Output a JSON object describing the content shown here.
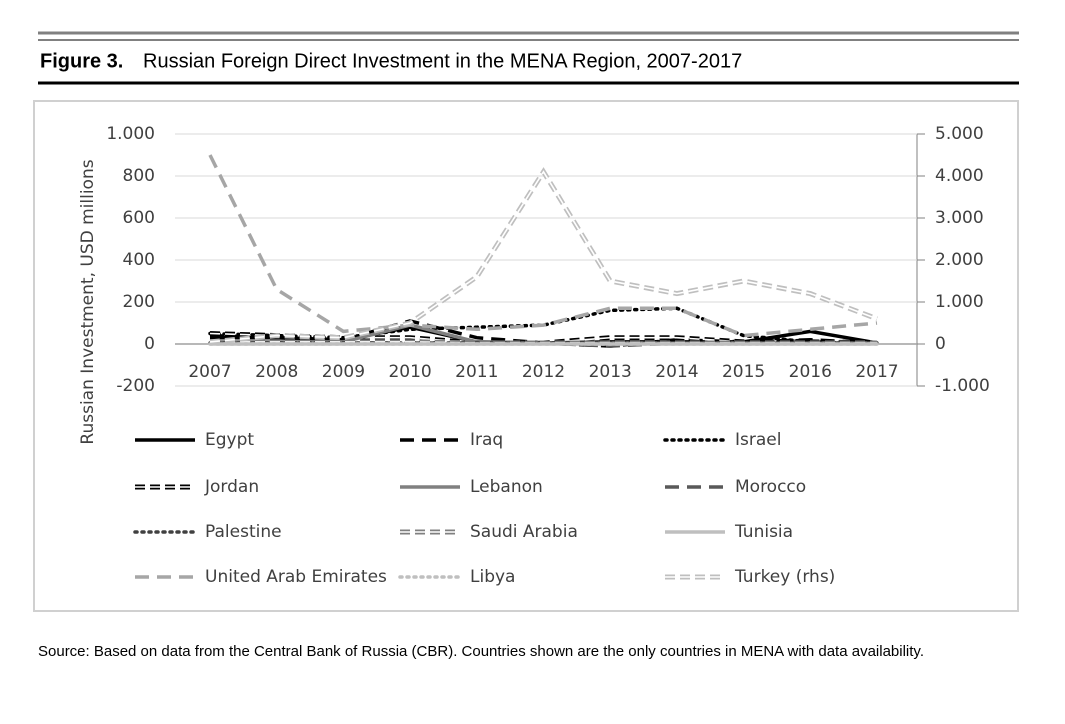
{
  "figure_label": "Figure 3.",
  "chart_data": {
    "type": "line",
    "title": "Russian Foreign Direct Investment in the MENA Region, 2007-2017",
    "y_label": "Russian Investment, USD millions",
    "categories": [
      "2007",
      "2008",
      "2009",
      "2010",
      "2011",
      "2012",
      "2013",
      "2014",
      "2015",
      "2016",
      "2017"
    ],
    "ylim": [
      -200,
      1000
    ],
    "yticks": [
      -200,
      0,
      200,
      400,
      600,
      800,
      {
        "value": 1000,
        "label": "1.000"
      }
    ],
    "y2lim": [
      -1000,
      5000
    ],
    "y2ticks": [
      {
        "value": -1000,
        "label": "-1.000"
      },
      0,
      {
        "value": 1000,
        "label": "1.000"
      },
      {
        "value": 2000,
        "label": "2.000"
      },
      {
        "value": 3000,
        "label": "3.000"
      },
      {
        "value": 4000,
        "label": "4.000"
      },
      {
        "value": 5000,
        "label": "5.000"
      }
    ],
    "grid": true,
    "series": [
      {
        "name": "Egypt",
        "color": "#000000",
        "style": "solid",
        "values": [
          30,
          30,
          20,
          80,
          10,
          5,
          10,
          10,
          10,
          60,
          5
        ]
      },
      {
        "name": "Iraq",
        "color": "#000000",
        "style": "dashed",
        "values": [
          40,
          30,
          20,
          110,
          30,
          5,
          -10,
          20,
          10,
          20,
          5
        ]
      },
      {
        "name": "Israel",
        "color": "#000000",
        "style": "dotted",
        "values": [
          50,
          40,
          30,
          70,
          80,
          90,
          160,
          170,
          40,
          10,
          5
        ]
      },
      {
        "name": "Jordan",
        "color": "#000000",
        "style": "double",
        "values": [
          50,
          40,
          30,
          30,
          5,
          5,
          30,
          30,
          10,
          10,
          5
        ]
      },
      {
        "name": "Lebanon",
        "color": "#808080",
        "style": "solid",
        "values": [
          10,
          10,
          10,
          90,
          10,
          5,
          5,
          5,
          5,
          5,
          5
        ]
      },
      {
        "name": "Morocco",
        "color": "#595959",
        "style": "dashed",
        "values": [
          5,
          5,
          5,
          5,
          5,
          5,
          -10,
          5,
          5,
          5,
          5
        ]
      },
      {
        "name": "Palestine",
        "color": "#404040",
        "style": "dotted",
        "values": [
          5,
          5,
          5,
          5,
          5,
          5,
          5,
          5,
          5,
          5,
          5
        ]
      },
      {
        "name": "Saudi Arabia",
        "color": "#808080",
        "style": "double",
        "values": [
          10,
          10,
          10,
          10,
          5,
          5,
          5,
          5,
          5,
          5,
          5
        ]
      },
      {
        "name": "Tunisia",
        "color": "#bfbfbf",
        "style": "solid",
        "values": [
          0,
          0,
          0,
          0,
          0,
          0,
          0,
          0,
          0,
          0,
          0
        ]
      },
      {
        "name": "United Arab Emirates",
        "color": "#a6a6a6",
        "style": "dashed",
        "values": [
          900,
          260,
          60,
          90,
          70,
          90,
          170,
          170,
          40,
          70,
          100
        ]
      },
      {
        "name": "Libya",
        "color": "#bfbfbf",
        "style": "dotted",
        "values": [
          0,
          0,
          0,
          0,
          0,
          0,
          0,
          0,
          0,
          0,
          0
        ]
      },
      {
        "name": "Turkey (rhs)",
        "color": "#bfbfbf",
        "style": "double",
        "axis": "y2",
        "values": [
          50,
          200,
          150,
          500,
          1600,
          4100,
          1500,
          1200,
          1500,
          1200,
          600
        ]
      }
    ]
  },
  "source": "Source: Based on data from the Central Bank of Russia (CBR). Countries shown are the only countries in MENA with data availability."
}
